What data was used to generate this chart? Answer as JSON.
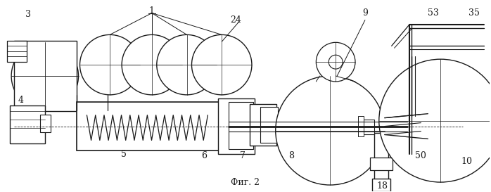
{
  "title": "Фиг. 2",
  "background_color": "#ffffff",
  "line_color": "#1a1a1a",
  "fig_width": 6.98,
  "fig_height": 2.73
}
